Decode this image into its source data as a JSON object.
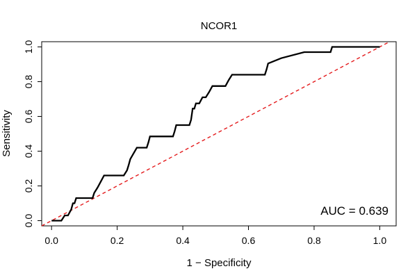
{
  "chart_data": {
    "type": "line",
    "title": "NCOR1",
    "xlabel": "1 − Specificity",
    "ylabel": "Sensitivity",
    "xlim": [
      -0.03,
      1.05
    ],
    "ylim": [
      -0.03,
      1.03
    ],
    "xticks": [
      0.0,
      0.2,
      0.4,
      0.6,
      0.8,
      1.0
    ],
    "xtick_labels": [
      "0.0",
      "0.2",
      "0.4",
      "0.6",
      "0.8",
      "1.0"
    ],
    "yticks": [
      0.0,
      0.2,
      0.4,
      0.6,
      0.8,
      1.0
    ],
    "ytick_labels": [
      "0.0",
      "0.2",
      "0.4",
      "0.6",
      "0.8",
      "1.0"
    ],
    "grid": false,
    "annotation": "AUC = 0.639",
    "reference_line": {
      "x": [
        0,
        1
      ],
      "y": [
        0,
        1
      ],
      "color": "#e41a1c",
      "style": "dashed"
    },
    "series": [
      {
        "color": "#000000",
        "x": [
          0.0,
          0.03,
          0.04,
          0.05,
          0.06,
          0.065,
          0.07,
          0.075,
          0.125,
          0.13,
          0.14,
          0.15,
          0.16,
          0.22,
          0.23,
          0.235,
          0.24,
          0.26,
          0.29,
          0.295,
          0.3,
          0.37,
          0.375,
          0.38,
          0.42,
          0.425,
          0.43,
          0.435,
          0.44,
          0.45,
          0.46,
          0.47,
          0.48,
          0.49,
          0.53,
          0.54,
          0.55,
          0.65,
          0.655,
          0.66,
          0.7,
          0.77,
          0.85,
          0.855,
          1.0
        ],
        "y": [
          0.0,
          0.0,
          0.03,
          0.03,
          0.065,
          0.1,
          0.1,
          0.13,
          0.13,
          0.16,
          0.19,
          0.225,
          0.26,
          0.26,
          0.29,
          0.32,
          0.355,
          0.42,
          0.42,
          0.45,
          0.485,
          0.485,
          0.515,
          0.55,
          0.55,
          0.58,
          0.645,
          0.645,
          0.675,
          0.675,
          0.71,
          0.71,
          0.74,
          0.775,
          0.775,
          0.81,
          0.84,
          0.84,
          0.87,
          0.905,
          0.935,
          0.97,
          0.97,
          1.0,
          1.0
        ]
      }
    ]
  }
}
